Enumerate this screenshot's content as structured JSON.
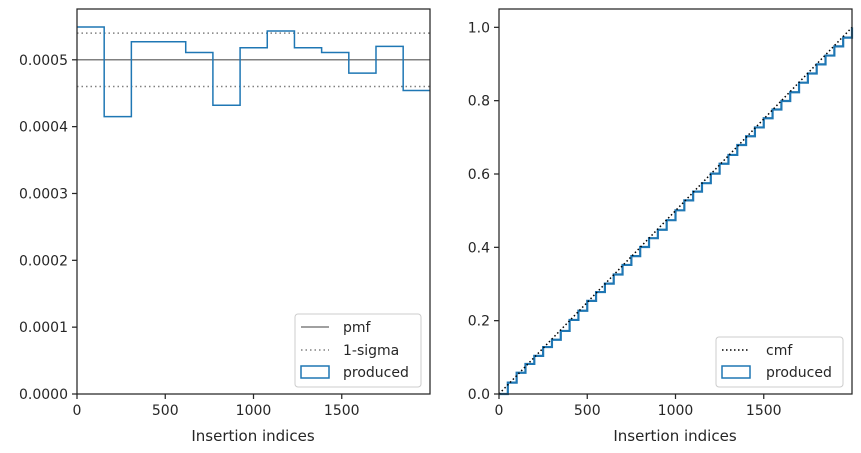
{
  "chart_data": [
    {
      "type": "step",
      "xlabel": "Insertion indices",
      "ylabel": "",
      "xlim": [
        0,
        2000
      ],
      "ylim": [
        0,
        0.000576
      ],
      "xticks": [
        0,
        500,
        1000,
        1500
      ],
      "xtick_labels": [
        "0",
        "500",
        "1000",
        "1500"
      ],
      "yticks": [
        0,
        0.0001,
        0.0002,
        0.0003,
        0.0004,
        0.0005
      ],
      "ytick_labels": [
        "0.0000",
        "0.0001",
        "0.0002",
        "0.0003",
        "0.0004",
        "0.0005"
      ],
      "legend_position": "lower-right",
      "lines": [
        {
          "name": "pmf",
          "y": 0.0005,
          "style": "solid",
          "color": "#808080"
        },
        {
          "name": "1-sigma",
          "y": [
            0.00046,
            0.00054
          ],
          "style": "dotted",
          "color": "#808080"
        }
      ],
      "histogram": {
        "name": "produced",
        "color": "#1f77b4",
        "bin_edges": [
          0,
          154,
          308,
          462,
          616,
          770,
          924,
          1078,
          1232,
          1386,
          1540,
          1694,
          1848,
          2000
        ],
        "values": [
          0.000549,
          0.000415,
          0.000527,
          0.000527,
          0.000511,
          0.000432,
          0.000518,
          0.000543,
          0.000518,
          0.000511,
          0.00048,
          0.00052,
          0.000454
        ]
      }
    },
    {
      "type": "line",
      "xlabel": "Insertion indices",
      "ylabel": "",
      "xlim": [
        0,
        2000
      ],
      "ylim": [
        0,
        1.05
      ],
      "xticks": [
        0,
        500,
        1000,
        1500
      ],
      "xtick_labels": [
        "0",
        "500",
        "1000",
        "1500"
      ],
      "yticks": [
        0,
        0.2,
        0.4,
        0.6,
        0.8,
        1.0
      ],
      "ytick_labels": [
        "0.0",
        "0.2",
        "0.4",
        "0.6",
        "0.8",
        "1.0"
      ],
      "legend_position": "lower-right",
      "series": [
        {
          "name": "cmf",
          "style": "dotted",
          "color": "#000000",
          "x": [
            0,
            2000
          ],
          "y": [
            0,
            1.0
          ]
        },
        {
          "name": "produced",
          "style": "step",
          "color": "#1f77b4",
          "x": [
            0,
            50,
            100,
            150,
            200,
            250,
            300,
            350,
            400,
            450,
            500,
            550,
            600,
            650,
            700,
            750,
            800,
            850,
            900,
            950,
            1000,
            1050,
            1100,
            1150,
            1200,
            1250,
            1300,
            1350,
            1400,
            1450,
            1500,
            1550,
            1600,
            1650,
            1700,
            1750,
            1800,
            1850,
            1900,
            1950,
            2000
          ],
          "y": [
            0,
            0.031,
            0.058,
            0.082,
            0.104,
            0.128,
            0.148,
            0.172,
            0.202,
            0.227,
            0.254,
            0.278,
            0.301,
            0.326,
            0.352,
            0.376,
            0.401,
            0.425,
            0.448,
            0.474,
            0.501,
            0.528,
            0.552,
            0.575,
            0.601,
            0.628,
            0.652,
            0.679,
            0.703,
            0.727,
            0.752,
            0.776,
            0.799,
            0.823,
            0.849,
            0.874,
            0.899,
            0.923,
            0.948,
            0.972,
            1.0
          ]
        }
      ]
    }
  ]
}
